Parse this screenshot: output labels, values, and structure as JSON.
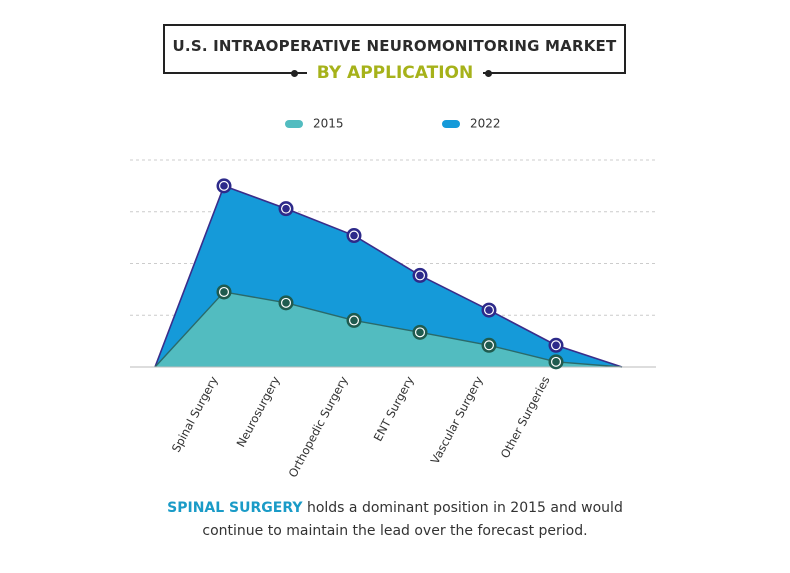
{
  "header": {
    "title": "U.S. INTRAOPERATIVE NEUROMONITORING MARKET",
    "subtitle": "BY APPLICATION"
  },
  "legend": [
    {
      "label": "2015",
      "color": "#52bcc0"
    },
    {
      "label": "2022",
      "color": "#159ad9"
    }
  ],
  "caption": {
    "highlight": "SPINAL SURGERY",
    "line1_rest": " holds a dominant position in 2015 and would",
    "line2": "continue to maintain the lead over the forecast period."
  },
  "colors": {
    "area_2015": "#52bcc0",
    "area_2022": "#159ad9",
    "line_2022": "#3a2d8a",
    "line_2015": "#2a6a6a",
    "marker_2015": "#1f5b4f",
    "marker_2022": "#2d2a8a",
    "grid": "#cccccc",
    "subtitle": "#a6b21a",
    "highlight": "#1a9bc7"
  },
  "chart_data": {
    "type": "area",
    "title": "U.S. INTRAOPERATIVE NEUROMONITORING MARKET",
    "subtitle": "BY APPLICATION",
    "categories": [
      "Spinal Surgery",
      "Neurosurgery",
      "Orthopedic Surgery",
      "ENT Surgery",
      "Vascular Surgery",
      "Other Surgeries"
    ],
    "series": [
      {
        "name": "2015",
        "values": [
          1.45,
          1.24,
          0.9,
          0.67,
          0.42,
          0.1
        ]
      },
      {
        "name": "2022",
        "values": [
          3.5,
          3.06,
          2.54,
          1.77,
          1.1,
          0.42
        ]
      }
    ],
    "ylim": [
      0,
      4
    ],
    "y_ticks_labeled": false,
    "grid": true,
    "legend_position": "top-center",
    "xlabel": "",
    "ylabel": ""
  }
}
